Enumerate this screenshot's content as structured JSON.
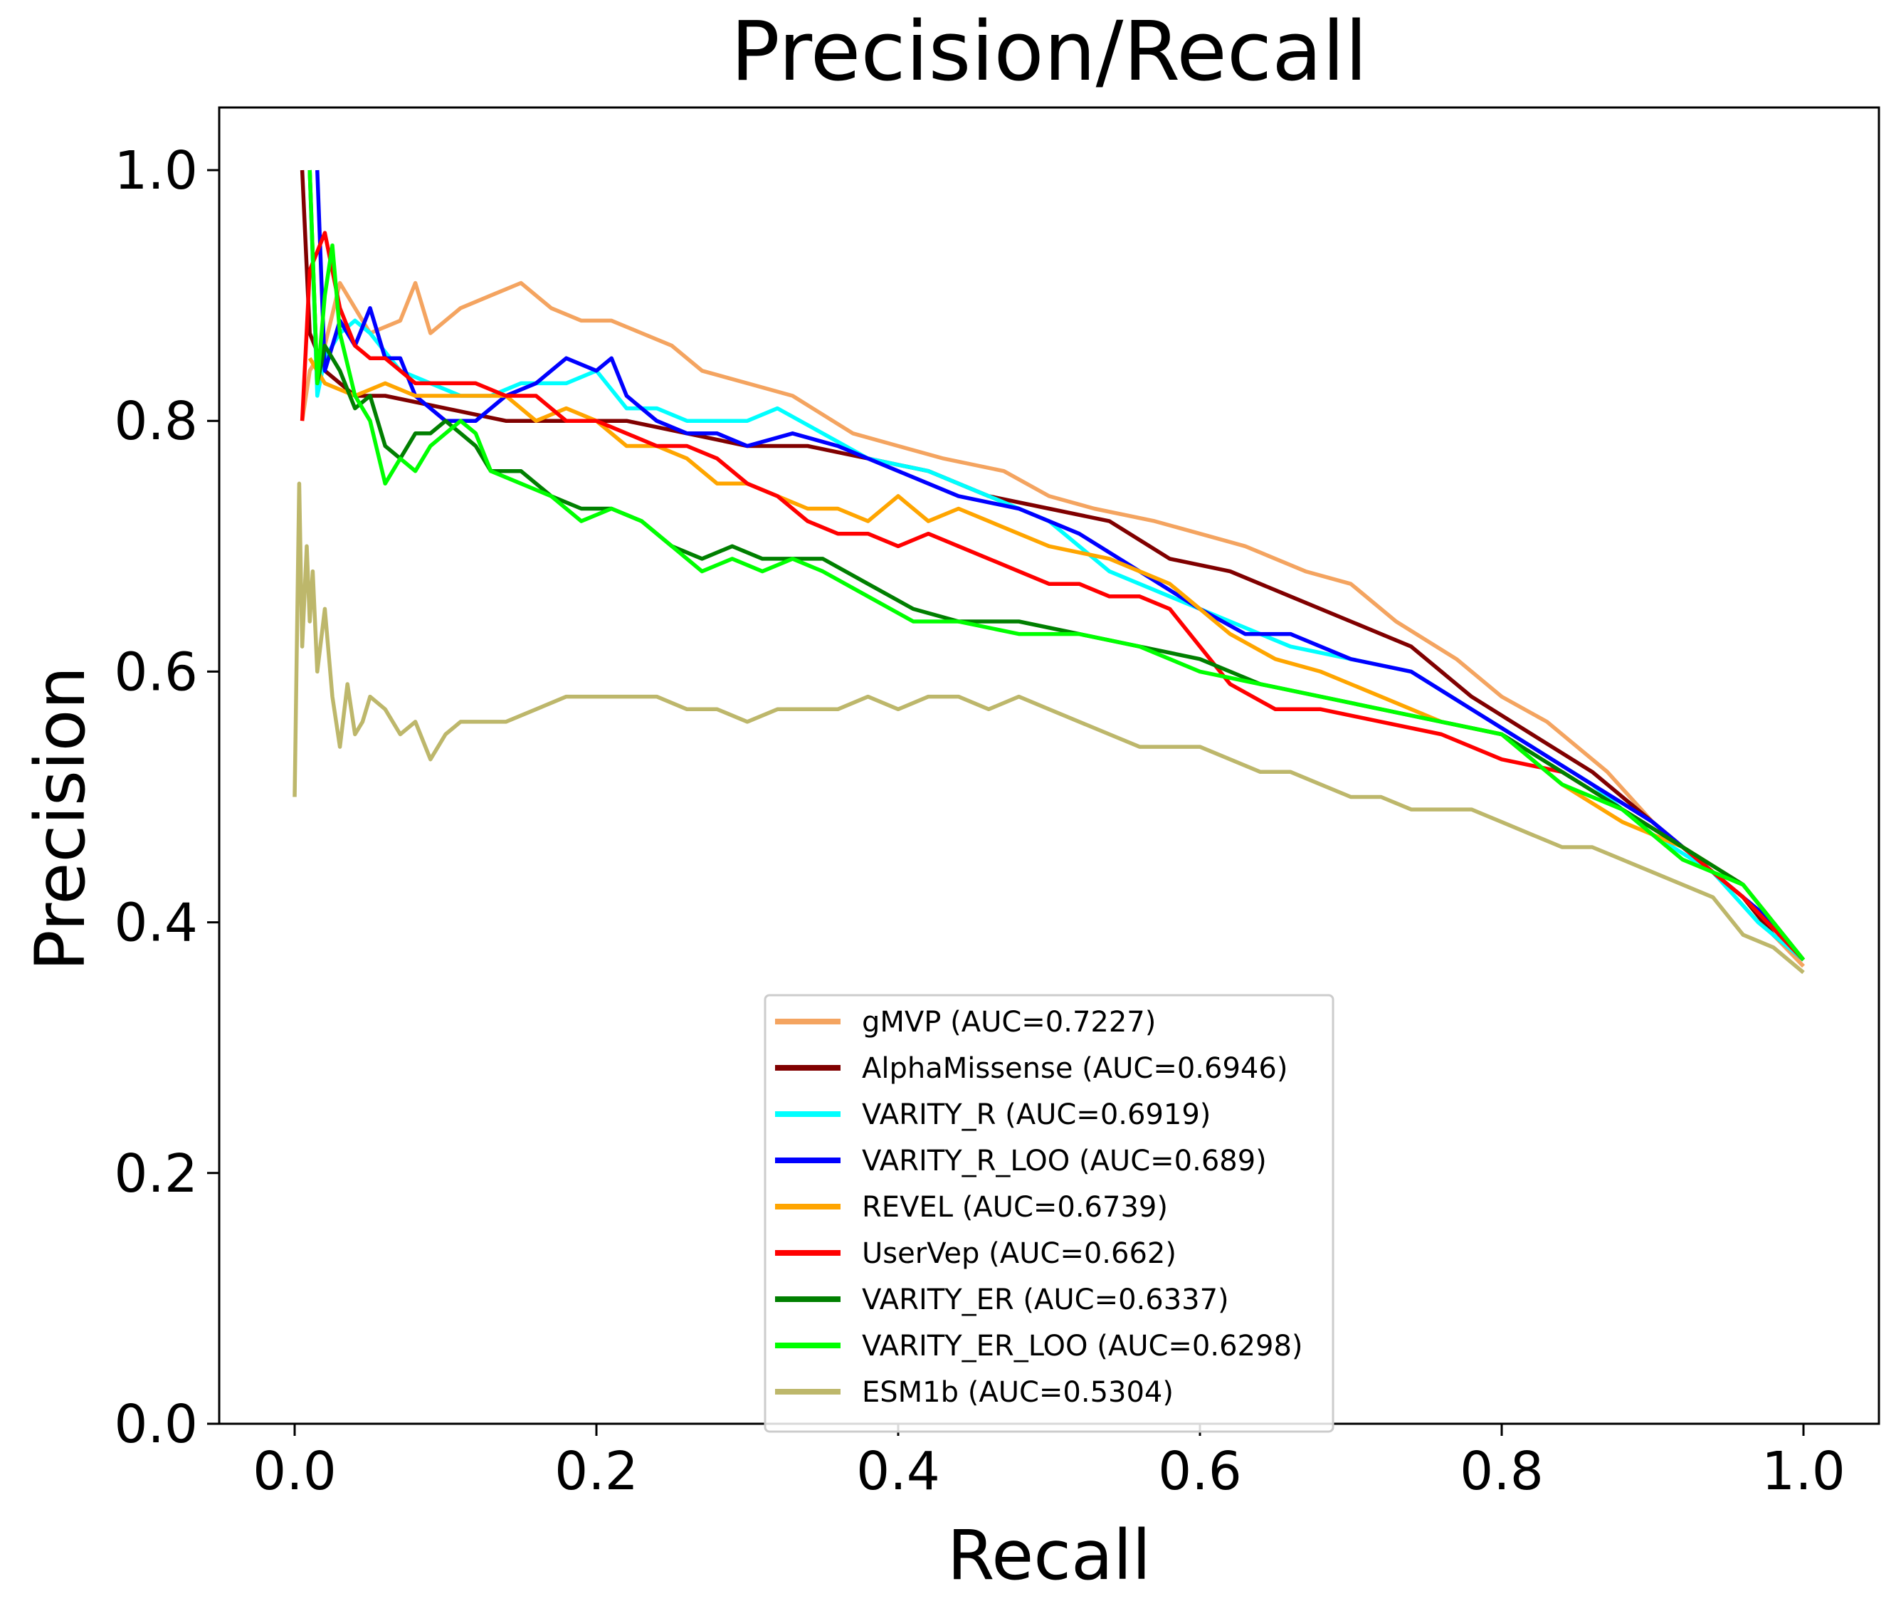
{
  "chart_data": {
    "type": "line",
    "title": "Precision/Recall",
    "xlabel": "Recall",
    "ylabel": "Precision",
    "xlim": [
      -0.05,
      1.05
    ],
    "ylim": [
      0.0,
      1.05
    ],
    "xticks": [
      0.0,
      0.2,
      0.4,
      0.6,
      0.8,
      1.0
    ],
    "yticks": [
      0.0,
      0.2,
      0.4,
      0.6,
      0.8,
      1.0
    ],
    "xtick_labels": [
      "0.0",
      "0.2",
      "0.4",
      "0.6",
      "0.8",
      "1.0"
    ],
    "ytick_labels": [
      "0.0",
      "0.2",
      "0.4",
      "0.6",
      "0.8",
      "1.0"
    ],
    "grid": false,
    "legend_position": "lower-center",
    "series": [
      {
        "name": "gMVP (AUC=0.7227)",
        "color": "#f4a460",
        "x": [
          0.005,
          0.01,
          0.02,
          0.03,
          0.05,
          0.07,
          0.08,
          0.09,
          0.11,
          0.13,
          0.15,
          0.17,
          0.19,
          0.21,
          0.23,
          0.25,
          0.27,
          0.3,
          0.33,
          0.37,
          0.4,
          0.43,
          0.47,
          0.5,
          0.53,
          0.57,
          0.6,
          0.63,
          0.67,
          0.7,
          0.73,
          0.77,
          0.8,
          0.83,
          0.87,
          0.9,
          0.93,
          0.96,
          0.98,
          1.0
        ],
        "y": [
          0.8,
          0.84,
          0.86,
          0.91,
          0.87,
          0.88,
          0.91,
          0.87,
          0.89,
          0.9,
          0.91,
          0.89,
          0.88,
          0.88,
          0.87,
          0.86,
          0.84,
          0.83,
          0.82,
          0.79,
          0.78,
          0.77,
          0.76,
          0.74,
          0.73,
          0.72,
          0.71,
          0.7,
          0.68,
          0.67,
          0.64,
          0.61,
          0.58,
          0.56,
          0.52,
          0.48,
          0.45,
          0.42,
          0.39,
          0.365
        ]
      },
      {
        "name": "AlphaMissense (AUC=0.6946)",
        "color": "#800000",
        "x": [
          0.005,
          0.01,
          0.02,
          0.04,
          0.06,
          0.1,
          0.14,
          0.18,
          0.22,
          0.26,
          0.3,
          0.34,
          0.38,
          0.42,
          0.46,
          0.5,
          0.54,
          0.58,
          0.62,
          0.66,
          0.7,
          0.74,
          0.78,
          0.82,
          0.86,
          0.9,
          0.93,
          0.96,
          0.98,
          1.0
        ],
        "y": [
          1.0,
          0.87,
          0.84,
          0.82,
          0.82,
          0.81,
          0.8,
          0.8,
          0.8,
          0.79,
          0.78,
          0.78,
          0.77,
          0.76,
          0.74,
          0.73,
          0.72,
          0.69,
          0.68,
          0.66,
          0.64,
          0.62,
          0.58,
          0.55,
          0.52,
          0.48,
          0.45,
          0.42,
          0.39,
          0.37
        ]
      },
      {
        "name": "VARITY_R (AUC=0.6919)",
        "color": "#00ffff",
        "x": [
          0.01,
          0.015,
          0.02,
          0.03,
          0.04,
          0.05,
          0.07,
          0.09,
          0.11,
          0.13,
          0.15,
          0.18,
          0.2,
          0.22,
          0.24,
          0.26,
          0.28,
          0.3,
          0.32,
          0.35,
          0.38,
          0.42,
          0.46,
          0.5,
          0.54,
          0.58,
          0.62,
          0.66,
          0.7,
          0.74,
          0.78,
          0.82,
          0.86,
          0.9,
          0.94,
          0.97,
          1.0
        ],
        "y": [
          1.0,
          0.82,
          0.85,
          0.87,
          0.88,
          0.87,
          0.84,
          0.83,
          0.82,
          0.82,
          0.83,
          0.83,
          0.84,
          0.81,
          0.81,
          0.8,
          0.8,
          0.8,
          0.81,
          0.79,
          0.77,
          0.76,
          0.74,
          0.72,
          0.68,
          0.66,
          0.64,
          0.62,
          0.61,
          0.6,
          0.57,
          0.54,
          0.51,
          0.47,
          0.44,
          0.4,
          0.37
        ]
      },
      {
        "name": "VARITY_R_LOO (AUC=0.689)",
        "color": "#0000ff",
        "x": [
          0.015,
          0.02,
          0.03,
          0.04,
          0.05,
          0.06,
          0.07,
          0.08,
          0.09,
          0.1,
          0.12,
          0.14,
          0.16,
          0.18,
          0.2,
          0.21,
          0.22,
          0.24,
          0.26,
          0.28,
          0.3,
          0.33,
          0.36,
          0.4,
          0.44,
          0.48,
          0.52,
          0.56,
          0.6,
          0.63,
          0.66,
          0.7,
          0.74,
          0.78,
          0.82,
          0.86,
          0.9,
          0.94,
          0.97,
          1.0
        ],
        "y": [
          1.0,
          0.84,
          0.88,
          0.86,
          0.89,
          0.85,
          0.85,
          0.82,
          0.81,
          0.8,
          0.8,
          0.82,
          0.83,
          0.85,
          0.84,
          0.85,
          0.82,
          0.8,
          0.79,
          0.79,
          0.78,
          0.79,
          0.78,
          0.76,
          0.74,
          0.73,
          0.71,
          0.68,
          0.65,
          0.63,
          0.63,
          0.61,
          0.6,
          0.57,
          0.54,
          0.51,
          0.48,
          0.44,
          0.41,
          0.37
        ]
      },
      {
        "name": "REVEL (AUC=0.6739)",
        "color": "#ffa500",
        "x": [
          0.01,
          0.02,
          0.04,
          0.06,
          0.08,
          0.1,
          0.12,
          0.14,
          0.16,
          0.18,
          0.2,
          0.22,
          0.24,
          0.26,
          0.28,
          0.3,
          0.32,
          0.34,
          0.36,
          0.38,
          0.4,
          0.42,
          0.44,
          0.46,
          0.5,
          0.54,
          0.58,
          0.62,
          0.65,
          0.68,
          0.72,
          0.76,
          0.8,
          0.84,
          0.88,
          0.92,
          0.96,
          1.0
        ],
        "y": [
          0.85,
          0.83,
          0.82,
          0.83,
          0.82,
          0.82,
          0.82,
          0.82,
          0.8,
          0.81,
          0.8,
          0.78,
          0.78,
          0.77,
          0.75,
          0.75,
          0.74,
          0.73,
          0.73,
          0.72,
          0.74,
          0.72,
          0.73,
          0.72,
          0.7,
          0.69,
          0.67,
          0.63,
          0.61,
          0.6,
          0.58,
          0.56,
          0.55,
          0.51,
          0.48,
          0.46,
          0.43,
          0.37
        ]
      },
      {
        "name": "UserVep (AUC=0.662)",
        "color": "#ff0000",
        "x": [
          0.005,
          0.01,
          0.02,
          0.03,
          0.04,
          0.05,
          0.06,
          0.07,
          0.08,
          0.1,
          0.12,
          0.14,
          0.16,
          0.18,
          0.2,
          0.22,
          0.24,
          0.26,
          0.28,
          0.3,
          0.32,
          0.34,
          0.36,
          0.38,
          0.4,
          0.42,
          0.44,
          0.46,
          0.48,
          0.5,
          0.52,
          0.54,
          0.56,
          0.58,
          0.6,
          0.62,
          0.65,
          0.68,
          0.72,
          0.76,
          0.8,
          0.84,
          0.88,
          0.92,
          0.96,
          1.0
        ],
        "y": [
          0.8,
          0.92,
          0.95,
          0.89,
          0.86,
          0.85,
          0.85,
          0.84,
          0.83,
          0.83,
          0.83,
          0.82,
          0.82,
          0.8,
          0.8,
          0.79,
          0.78,
          0.78,
          0.77,
          0.75,
          0.74,
          0.72,
          0.71,
          0.71,
          0.7,
          0.71,
          0.7,
          0.69,
          0.68,
          0.67,
          0.67,
          0.66,
          0.66,
          0.65,
          0.62,
          0.59,
          0.57,
          0.57,
          0.56,
          0.55,
          0.53,
          0.52,
          0.49,
          0.46,
          0.42,
          0.37
        ]
      },
      {
        "name": "VARITY_ER (AUC=0.6337)",
        "color": "#007f00",
        "x": [
          0.01,
          0.015,
          0.02,
          0.03,
          0.04,
          0.05,
          0.06,
          0.07,
          0.08,
          0.09,
          0.1,
          0.11,
          0.12,
          0.13,
          0.15,
          0.17,
          0.19,
          0.21,
          0.23,
          0.25,
          0.27,
          0.29,
          0.31,
          0.33,
          0.35,
          0.38,
          0.41,
          0.44,
          0.48,
          0.52,
          0.56,
          0.6,
          0.64,
          0.68,
          0.72,
          0.76,
          0.8,
          0.84,
          0.88,
          0.92,
          0.96,
          1.0
        ],
        "y": [
          1.0,
          0.83,
          0.86,
          0.84,
          0.81,
          0.82,
          0.78,
          0.77,
          0.79,
          0.79,
          0.8,
          0.79,
          0.78,
          0.76,
          0.76,
          0.74,
          0.73,
          0.73,
          0.72,
          0.7,
          0.69,
          0.7,
          0.69,
          0.69,
          0.69,
          0.67,
          0.65,
          0.64,
          0.64,
          0.63,
          0.62,
          0.61,
          0.59,
          0.58,
          0.57,
          0.56,
          0.55,
          0.52,
          0.49,
          0.46,
          0.43,
          0.37
        ]
      },
      {
        "name": "VARITY_ER_LOO (AUC=0.6298)",
        "color": "#00ff00",
        "x": [
          0.01,
          0.015,
          0.02,
          0.025,
          0.03,
          0.04,
          0.05,
          0.06,
          0.07,
          0.08,
          0.09,
          0.1,
          0.11,
          0.12,
          0.13,
          0.15,
          0.17,
          0.19,
          0.21,
          0.23,
          0.25,
          0.27,
          0.29,
          0.31,
          0.33,
          0.35,
          0.38,
          0.41,
          0.44,
          0.48,
          0.52,
          0.56,
          0.6,
          0.64,
          0.68,
          0.72,
          0.76,
          0.8,
          0.84,
          0.88,
          0.92,
          0.96,
          1.0
        ],
        "y": [
          1.0,
          0.83,
          0.9,
          0.94,
          0.87,
          0.82,
          0.8,
          0.75,
          0.77,
          0.76,
          0.78,
          0.79,
          0.8,
          0.79,
          0.76,
          0.75,
          0.74,
          0.72,
          0.73,
          0.72,
          0.7,
          0.68,
          0.69,
          0.68,
          0.69,
          0.68,
          0.66,
          0.64,
          0.64,
          0.63,
          0.63,
          0.62,
          0.6,
          0.59,
          0.58,
          0.57,
          0.56,
          0.55,
          0.51,
          0.49,
          0.45,
          0.43,
          0.37
        ]
      },
      {
        "name": "ESM1b (AUC=0.5304)",
        "color": "#bdb76b",
        "x": [
          0.0,
          0.003,
          0.005,
          0.008,
          0.01,
          0.012,
          0.015,
          0.02,
          0.025,
          0.03,
          0.035,
          0.04,
          0.045,
          0.05,
          0.06,
          0.07,
          0.08,
          0.09,
          0.1,
          0.11,
          0.12,
          0.14,
          0.16,
          0.18,
          0.2,
          0.22,
          0.24,
          0.26,
          0.28,
          0.3,
          0.32,
          0.34,
          0.36,
          0.38,
          0.4,
          0.42,
          0.44,
          0.46,
          0.48,
          0.5,
          0.52,
          0.54,
          0.56,
          0.58,
          0.6,
          0.62,
          0.64,
          0.66,
          0.68,
          0.7,
          0.72,
          0.74,
          0.76,
          0.78,
          0.8,
          0.82,
          0.84,
          0.86,
          0.88,
          0.9,
          0.92,
          0.94,
          0.96,
          0.98,
          1.0
        ],
        "y": [
          0.5,
          0.75,
          0.62,
          0.7,
          0.64,
          0.68,
          0.6,
          0.65,
          0.58,
          0.54,
          0.59,
          0.55,
          0.56,
          0.58,
          0.57,
          0.55,
          0.56,
          0.53,
          0.55,
          0.56,
          0.56,
          0.56,
          0.57,
          0.58,
          0.58,
          0.58,
          0.58,
          0.57,
          0.57,
          0.56,
          0.57,
          0.57,
          0.57,
          0.58,
          0.57,
          0.58,
          0.58,
          0.57,
          0.58,
          0.57,
          0.56,
          0.55,
          0.54,
          0.54,
          0.54,
          0.53,
          0.52,
          0.52,
          0.51,
          0.5,
          0.5,
          0.49,
          0.49,
          0.49,
          0.48,
          0.47,
          0.46,
          0.46,
          0.45,
          0.44,
          0.43,
          0.42,
          0.39,
          0.38,
          0.36
        ]
      }
    ]
  }
}
